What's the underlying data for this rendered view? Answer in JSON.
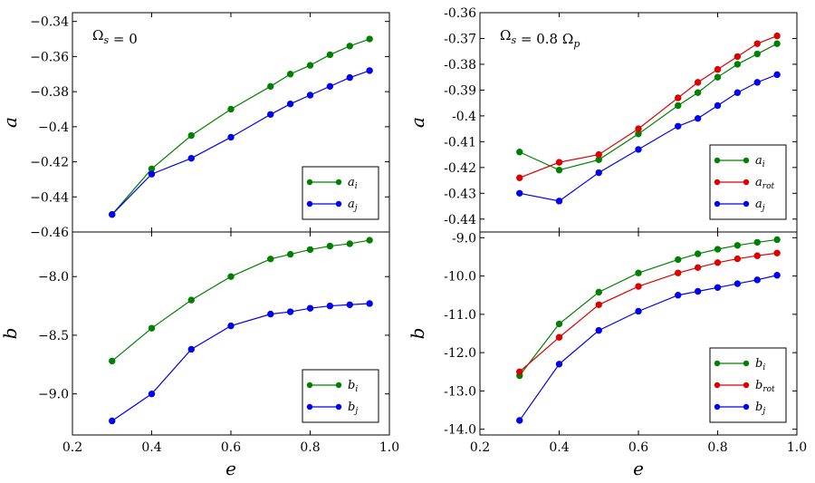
{
  "chart_data": [
    {
      "id": "left-top",
      "type": "line",
      "annotation": "Ωs = 0",
      "ylabel": "a",
      "xlabel": "",
      "xlim": [
        0.2,
        1.0
      ],
      "ylim": [
        -0.46,
        -0.335
      ],
      "yticks": [
        -0.46,
        -0.44,
        -0.42,
        -0.4,
        -0.38,
        -0.36,
        -0.34
      ],
      "ytick_labels": [
        "−0.46",
        "−0.44",
        "−0.42",
        "−0.4",
        "−0.38",
        "−0.36",
        "−0.34"
      ],
      "xticks": [
        0.2,
        0.4,
        0.6,
        0.8,
        1.0
      ],
      "xtick_labels": [
        "",
        "",
        "",
        "",
        ""
      ],
      "legend_position": "bottom-right",
      "series": [
        {
          "name": "a_i",
          "label": "a",
          "sub": "i",
          "color": "#008000",
          "x": [
            0.3,
            0.4,
            0.5,
            0.6,
            0.7,
            0.75,
            0.8,
            0.85,
            0.9,
            0.95
          ],
          "y": [
            -0.45,
            -0.424,
            -0.405,
            -0.39,
            -0.377,
            -0.37,
            -0.365,
            -0.359,
            -0.354,
            -0.35
          ]
        },
        {
          "name": "a_j",
          "label": "a",
          "sub": "j",
          "color": "#0000ee",
          "x": [
            0.3,
            0.4,
            0.5,
            0.6,
            0.7,
            0.75,
            0.8,
            0.85,
            0.9,
            0.95
          ],
          "y": [
            -0.45,
            -0.427,
            -0.418,
            -0.406,
            -0.393,
            -0.387,
            -0.382,
            -0.377,
            -0.372,
            -0.368
          ]
        }
      ]
    },
    {
      "id": "left-bottom",
      "type": "line",
      "annotation": "",
      "ylabel": "b",
      "xlabel": "e",
      "xlim": [
        0.2,
        1.0
      ],
      "ylim": [
        -9.35,
        -7.62
      ],
      "yticks": [
        -9.0,
        -8.5,
        -8.0
      ],
      "ytick_labels": [
        "−9.0",
        "−8.5",
        "−8.0"
      ],
      "xticks": [
        0.2,
        0.4,
        0.6,
        0.8,
        1.0
      ],
      "xtick_labels": [
        "0.2",
        "0.4",
        "0.6",
        "0.8",
        "1.0"
      ],
      "legend_position": "bottom-right",
      "series": [
        {
          "name": "b_i",
          "label": "b",
          "sub": "i",
          "color": "#008000",
          "x": [
            0.3,
            0.4,
            0.5,
            0.6,
            0.7,
            0.75,
            0.8,
            0.85,
            0.9,
            0.95
          ],
          "y": [
            -8.72,
            -8.44,
            -8.2,
            -8.0,
            -7.85,
            -7.81,
            -7.77,
            -7.74,
            -7.72,
            -7.69
          ]
        },
        {
          "name": "b_j",
          "label": "b",
          "sub": "j",
          "color": "#0000ee",
          "x": [
            0.3,
            0.4,
            0.5,
            0.6,
            0.7,
            0.75,
            0.8,
            0.85,
            0.9,
            0.95
          ],
          "y": [
            -9.23,
            -9.0,
            -8.62,
            -8.42,
            -8.32,
            -8.3,
            -8.27,
            -8.25,
            -8.24,
            -8.23
          ]
        }
      ]
    },
    {
      "id": "right-top",
      "type": "line",
      "annotation": "Ωs = 0.8 Ωp",
      "ylabel": "a",
      "xlabel": "",
      "xlim": [
        0.2,
        1.0
      ],
      "ylim": [
        -0.445,
        -0.36
      ],
      "yticks": [
        -0.44,
        -0.43,
        -0.42,
        -0.41,
        -0.4,
        -0.39,
        -0.38,
        -0.37,
        -0.36
      ],
      "ytick_labels": [
        "-0.44",
        "-0.43",
        "-0.42",
        "-0.41",
        "-0.4",
        "-0.39",
        "-0.38",
        "-0.37",
        "-0.36"
      ],
      "xticks": [
        0.2,
        0.4,
        0.6,
        0.8,
        1.0
      ],
      "xtick_labels": [
        "",
        "",
        "",
        "",
        ""
      ],
      "legend_position": "bottom-right",
      "series": [
        {
          "name": "a_i",
          "label": "a",
          "sub": "i",
          "color": "#008000",
          "x": [
            0.3,
            0.4,
            0.5,
            0.6,
            0.7,
            0.75,
            0.8,
            0.85,
            0.9,
            0.95
          ],
          "y": [
            -0.414,
            -0.421,
            -0.417,
            -0.407,
            -0.396,
            -0.391,
            -0.385,
            -0.38,
            -0.376,
            -0.372
          ]
        },
        {
          "name": "a_rot",
          "label": "a",
          "sub": "rot",
          "color": "#dd0000",
          "x": [
            0.3,
            0.4,
            0.5,
            0.6,
            0.7,
            0.75,
            0.8,
            0.85,
            0.9,
            0.95
          ],
          "y": [
            -0.424,
            -0.418,
            -0.415,
            -0.405,
            -0.393,
            -0.387,
            -0.382,
            -0.377,
            -0.372,
            -0.369
          ]
        },
        {
          "name": "a_j",
          "label": "a",
          "sub": "j",
          "color": "#0000ee",
          "x": [
            0.3,
            0.4,
            0.5,
            0.6,
            0.7,
            0.75,
            0.8,
            0.85,
            0.9,
            0.95
          ],
          "y": [
            -0.43,
            -0.433,
            -0.422,
            -0.413,
            -0.404,
            -0.401,
            -0.396,
            -0.391,
            -0.387,
            -0.384
          ]
        }
      ]
    },
    {
      "id": "right-bottom",
      "type": "line",
      "annotation": "",
      "ylabel": "b",
      "xlabel": "e",
      "xlim": [
        0.2,
        1.0
      ],
      "ylim": [
        -14.15,
        -8.85
      ],
      "yticks": [
        -14.0,
        -13.0,
        -12.0,
        -11.0,
        -10.0,
        -9.0
      ],
      "ytick_labels": [
        "-14.0",
        "-13.0",
        "-12.0",
        "-11.0",
        "-10.0",
        "-9.0"
      ],
      "xticks": [
        0.2,
        0.4,
        0.6,
        0.8,
        1.0
      ],
      "xtick_labels": [
        "0.2",
        "0.4",
        "0.6",
        "0.8",
        "1.0"
      ],
      "legend_position": "bottom-right",
      "series": [
        {
          "name": "b_i",
          "label": "b",
          "sub": "i",
          "color": "#008000",
          "x": [
            0.3,
            0.4,
            0.5,
            0.6,
            0.7,
            0.75,
            0.8,
            0.85,
            0.9,
            0.95
          ],
          "y": [
            -12.6,
            -11.25,
            -10.42,
            -9.92,
            -9.57,
            -9.42,
            -9.3,
            -9.2,
            -9.12,
            -9.05
          ]
        },
        {
          "name": "b_rot",
          "label": "b",
          "sub": "rot",
          "color": "#dd0000",
          "x": [
            0.3,
            0.4,
            0.5,
            0.6,
            0.7,
            0.75,
            0.8,
            0.85,
            0.9,
            0.95
          ],
          "y": [
            -12.5,
            -11.6,
            -10.75,
            -10.27,
            -9.92,
            -9.78,
            -9.65,
            -9.55,
            -9.47,
            -9.4
          ]
        },
        {
          "name": "b_j",
          "label": "b",
          "sub": "j",
          "color": "#0000ee",
          "x": [
            0.3,
            0.4,
            0.5,
            0.6,
            0.7,
            0.75,
            0.8,
            0.85,
            0.9,
            0.95
          ],
          "y": [
            -13.77,
            -12.3,
            -11.42,
            -10.92,
            -10.5,
            -10.4,
            -10.3,
            -10.2,
            -10.1,
            -9.98
          ]
        }
      ]
    }
  ]
}
